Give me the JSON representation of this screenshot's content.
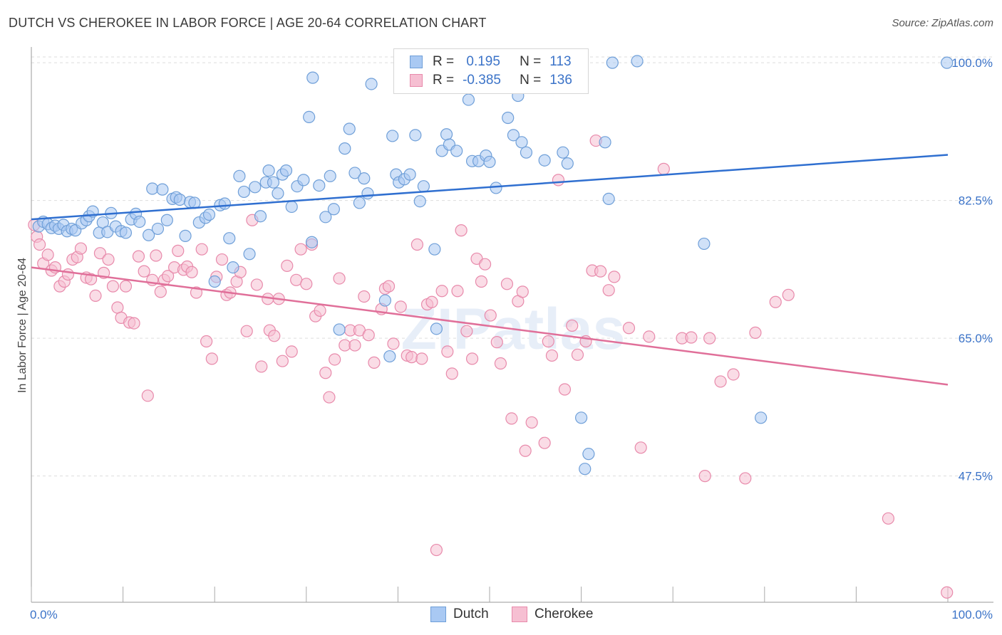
{
  "title": "DUTCH VS CHEROKEE IN LABOR FORCE | AGE 20-64 CORRELATION CHART",
  "source": "Source: ZipAtlas.com",
  "watermark": "ZIPatlas",
  "legend": {
    "rows": [
      {
        "r_label": "R =",
        "r_value": " 0.195",
        "n_label": "N =",
        "n_value": "113"
      },
      {
        "r_label": "R =",
        "r_value": "-0.385",
        "n_label": "N =",
        "n_value": "136"
      }
    ]
  },
  "colors": {
    "dutch_fill": "#a9c9f3",
    "dutch_stroke": "#6f9fd8",
    "dutch_line": "#2f6fd0",
    "cherokee_fill": "#f6bfd2",
    "cherokee_stroke": "#e88aab",
    "cherokee_line": "#e06f99",
    "axis_text": "#3b73c8",
    "grid": "#dddddd"
  },
  "chart_data": {
    "type": "scatter",
    "title": "DUTCH VS CHEROKEE IN LABOR FORCE | AGE 20-64 CORRELATION CHART",
    "xlabel": "",
    "ylabel": "In Labor Force | Age 20-64",
    "xlim": [
      0,
      100
    ],
    "ylim": [
      32,
      102
    ],
    "x_tick_labels": [
      "0.0%",
      "100.0%"
    ],
    "y_ticks": [
      47.5,
      65.0,
      82.5,
      100.0
    ],
    "y_tick_labels": [
      "47.5%",
      "65.0%",
      "82.5%",
      "100.0%"
    ],
    "grid": true,
    "legend_position": "bottom",
    "series": [
      {
        "name": "Dutch",
        "r": 0.195,
        "n": 113,
        "trend": {
          "x": [
            0,
            100
          ],
          "y": [
            80.1,
            88.3
          ]
        },
        "points": [
          [
            0.8,
            79.2
          ],
          [
            1.3,
            79.8
          ],
          [
            1.8,
            79.5
          ],
          [
            2.2,
            79.0
          ],
          [
            2.6,
            79.3
          ],
          [
            3.0,
            78.9
          ],
          [
            3.5,
            79.4
          ],
          [
            3.9,
            78.6
          ],
          [
            4.4,
            78.9
          ],
          [
            4.8,
            78.7
          ],
          [
            5.5,
            79.6
          ],
          [
            6.0,
            80.0
          ],
          [
            6.3,
            80.5
          ],
          [
            6.7,
            81.1
          ],
          [
            7.4,
            78.4
          ],
          [
            7.8,
            79.7
          ],
          [
            8.3,
            78.5
          ],
          [
            8.7,
            80.9
          ],
          [
            9.2,
            79.2
          ],
          [
            9.8,
            78.6
          ],
          [
            10.3,
            78.4
          ],
          [
            10.9,
            80.1
          ],
          [
            11.4,
            80.8
          ],
          [
            11.8,
            79.8
          ],
          [
            12.8,
            78.1
          ],
          [
            13.2,
            84.0
          ],
          [
            13.8,
            78.9
          ],
          [
            14.3,
            83.9
          ],
          [
            14.8,
            80.0
          ],
          [
            15.4,
            82.7
          ],
          [
            15.8,
            82.9
          ],
          [
            16.2,
            82.6
          ],
          [
            16.8,
            78.0
          ],
          [
            17.3,
            82.3
          ],
          [
            17.8,
            82.2
          ],
          [
            18.3,
            79.7
          ],
          [
            19.0,
            80.3
          ],
          [
            19.4,
            80.7
          ],
          [
            20.0,
            72.2
          ],
          [
            20.6,
            81.9
          ],
          [
            21.1,
            82.1
          ],
          [
            21.6,
            77.7
          ],
          [
            22.0,
            74.0
          ],
          [
            22.7,
            85.6
          ],
          [
            23.2,
            83.6
          ],
          [
            23.8,
            75.7
          ],
          [
            24.4,
            84.2
          ],
          [
            25.0,
            80.5
          ],
          [
            25.6,
            84.8
          ],
          [
            25.9,
            86.3
          ],
          [
            26.4,
            84.8
          ],
          [
            26.9,
            83.4
          ],
          [
            27.4,
            85.8
          ],
          [
            27.8,
            86.3
          ],
          [
            28.4,
            81.7
          ],
          [
            29.0,
            84.3
          ],
          [
            29.7,
            85.1
          ],
          [
            30.3,
            93.1
          ],
          [
            30.6,
            77.2
          ],
          [
            31.4,
            84.4
          ],
          [
            32.1,
            80.4
          ],
          [
            32.6,
            85.6
          ],
          [
            33.0,
            81.4
          ],
          [
            33.6,
            66.1
          ],
          [
            34.2,
            89.1
          ],
          [
            34.7,
            91.6
          ],
          [
            35.3,
            86.0
          ],
          [
            35.8,
            82.2
          ],
          [
            36.3,
            85.3
          ],
          [
            36.7,
            83.4
          ],
          [
            37.1,
            97.3
          ],
          [
            38.6,
            69.8
          ],
          [
            39.1,
            62.7
          ],
          [
            39.4,
            90.7
          ],
          [
            39.8,
            85.8
          ],
          [
            40.1,
            84.8
          ],
          [
            40.7,
            85.2
          ],
          [
            41.3,
            85.8
          ],
          [
            41.9,
            90.8
          ],
          [
            42.4,
            82.4
          ],
          [
            42.8,
            84.3
          ],
          [
            44.0,
            76.3
          ],
          [
            44.2,
            66.2
          ],
          [
            44.8,
            88.8
          ],
          [
            45.3,
            90.9
          ],
          [
            45.6,
            89.6
          ],
          [
            46.4,
            88.8
          ],
          [
            47.7,
            95.3
          ],
          [
            48.1,
            87.5
          ],
          [
            48.8,
            87.5
          ],
          [
            49.6,
            88.2
          ],
          [
            50.0,
            87.4
          ],
          [
            50.7,
            84.1
          ],
          [
            51.2,
            100.0
          ],
          [
            52.0,
            93.0
          ],
          [
            52.6,
            90.8
          ],
          [
            53.1,
            95.8
          ],
          [
            53.5,
            89.9
          ],
          [
            54.0,
            88.6
          ],
          [
            56.0,
            87.6
          ],
          [
            58.0,
            88.6
          ],
          [
            58.5,
            87.2
          ],
          [
            60.0,
            54.9
          ],
          [
            60.4,
            48.4
          ],
          [
            60.8,
            50.3
          ],
          [
            62.6,
            89.9
          ],
          [
            63.0,
            82.7
          ],
          [
            63.4,
            100.0
          ],
          [
            66.1,
            100.2
          ],
          [
            73.4,
            77.0
          ],
          [
            79.6,
            54.9
          ],
          [
            99.9,
            100.0
          ],
          [
            30.7,
            98.1
          ]
        ]
      },
      {
        "name": "Cherokee",
        "r": -0.385,
        "n": 136,
        "trend": {
          "x": [
            0,
            100
          ],
          "y": [
            74.0,
            59.1
          ]
        },
        "points": [
          [
            0.3,
            79.4
          ],
          [
            0.6,
            77.9
          ],
          [
            0.9,
            76.9
          ],
          [
            1.3,
            74.5
          ],
          [
            1.8,
            75.6
          ],
          [
            2.2,
            73.6
          ],
          [
            2.6,
            74.0
          ],
          [
            3.1,
            71.6
          ],
          [
            3.6,
            72.2
          ],
          [
            4.0,
            73.1
          ],
          [
            4.5,
            75.0
          ],
          [
            5.0,
            75.3
          ],
          [
            5.4,
            76.4
          ],
          [
            6.0,
            72.7
          ],
          [
            6.5,
            72.5
          ],
          [
            7.0,
            70.4
          ],
          [
            7.5,
            75.8
          ],
          [
            7.9,
            73.3
          ],
          [
            8.4,
            75.0
          ],
          [
            8.9,
            71.6
          ],
          [
            9.4,
            68.9
          ],
          [
            9.8,
            67.6
          ],
          [
            10.3,
            71.6
          ],
          [
            10.7,
            67.0
          ],
          [
            11.2,
            66.9
          ],
          [
            11.7,
            75.4
          ],
          [
            12.3,
            73.5
          ],
          [
            12.7,
            57.7
          ],
          [
            13.2,
            72.4
          ],
          [
            13.6,
            75.5
          ],
          [
            14.1,
            70.9
          ],
          [
            14.5,
            72.4
          ],
          [
            14.9,
            72.9
          ],
          [
            15.6,
            74.0
          ],
          [
            16.0,
            76.1
          ],
          [
            16.6,
            73.7
          ],
          [
            17.0,
            74.1
          ],
          [
            17.5,
            73.4
          ],
          [
            18.0,
            70.8
          ],
          [
            18.6,
            76.3
          ],
          [
            19.1,
            64.6
          ],
          [
            19.7,
            62.4
          ],
          [
            20.2,
            72.8
          ],
          [
            20.8,
            75.0
          ],
          [
            21.3,
            70.5
          ],
          [
            21.7,
            70.8
          ],
          [
            22.4,
            72.2
          ],
          [
            22.8,
            73.4
          ],
          [
            23.5,
            65.9
          ],
          [
            24.1,
            80.0
          ],
          [
            24.6,
            71.8
          ],
          [
            25.1,
            61.4
          ],
          [
            25.8,
            70.0
          ],
          [
            26.0,
            66.0
          ],
          [
            26.5,
            65.3
          ],
          [
            27.0,
            70.0
          ],
          [
            27.4,
            62.1
          ],
          [
            27.9,
            74.2
          ],
          [
            28.4,
            63.3
          ],
          [
            28.9,
            72.4
          ],
          [
            29.4,
            76.3
          ],
          [
            30.0,
            71.9
          ],
          [
            30.6,
            76.9
          ],
          [
            31.0,
            67.8
          ],
          [
            31.5,
            68.5
          ],
          [
            32.1,
            60.6
          ],
          [
            32.5,
            57.5
          ],
          [
            33.1,
            62.3
          ],
          [
            33.6,
            72.6
          ],
          [
            34.2,
            64.1
          ],
          [
            34.8,
            66.0
          ],
          [
            35.3,
            64.1
          ],
          [
            35.8,
            66.0
          ],
          [
            36.3,
            70.3
          ],
          [
            36.8,
            65.4
          ],
          [
            37.4,
            61.9
          ],
          [
            38.2,
            68.7
          ],
          [
            38.6,
            71.3
          ],
          [
            39.0,
            71.6
          ],
          [
            39.5,
            64.3
          ],
          [
            40.3,
            69.0
          ],
          [
            41.0,
            62.8
          ],
          [
            41.5,
            62.6
          ],
          [
            42.1,
            76.9
          ],
          [
            42.6,
            62.4
          ],
          [
            43.2,
            69.3
          ],
          [
            43.7,
            69.6
          ],
          [
            44.2,
            38.1
          ],
          [
            44.8,
            71.0
          ],
          [
            45.4,
            63.3
          ],
          [
            45.9,
            60.5
          ],
          [
            46.5,
            71.0
          ],
          [
            46.9,
            78.7
          ],
          [
            47.5,
            65.9
          ],
          [
            48.1,
            62.4
          ],
          [
            48.6,
            75.1
          ],
          [
            49.1,
            72.2
          ],
          [
            49.5,
            74.4
          ],
          [
            50.1,
            67.9
          ],
          [
            50.8,
            64.5
          ],
          [
            51.2,
            61.8
          ],
          [
            51.9,
            71.9
          ],
          [
            52.4,
            54.8
          ],
          [
            53.1,
            69.7
          ],
          [
            53.6,
            70.9
          ],
          [
            53.9,
            50.7
          ],
          [
            54.6,
            54.3
          ],
          [
            56.0,
            51.7
          ],
          [
            56.4,
            64.6
          ],
          [
            56.8,
            62.8
          ],
          [
            57.5,
            85.1
          ],
          [
            58.2,
            58.5
          ],
          [
            59.0,
            66.6
          ],
          [
            59.6,
            62.9
          ],
          [
            60.5,
            64.6
          ],
          [
            61.2,
            73.6
          ],
          [
            61.6,
            90.1
          ],
          [
            62.1,
            73.5
          ],
          [
            63.0,
            71.1
          ],
          [
            63.6,
            72.8
          ],
          [
            65.2,
            66.3
          ],
          [
            66.5,
            51.1
          ],
          [
            67.4,
            65.2
          ],
          [
            69.0,
            86.5
          ],
          [
            71.0,
            65.0
          ],
          [
            72.0,
            65.1
          ],
          [
            73.5,
            47.5
          ],
          [
            74.0,
            65.0
          ],
          [
            75.2,
            59.5
          ],
          [
            76.6,
            60.4
          ],
          [
            77.9,
            47.2
          ],
          [
            79.0,
            65.7
          ],
          [
            81.2,
            69.6
          ],
          [
            82.6,
            70.5
          ],
          [
            93.5,
            42.1
          ],
          [
            99.9,
            32.7
          ]
        ]
      }
    ]
  },
  "bottom_legend": {
    "dutch_label": "Dutch",
    "cherokee_label": "Cherokee"
  }
}
